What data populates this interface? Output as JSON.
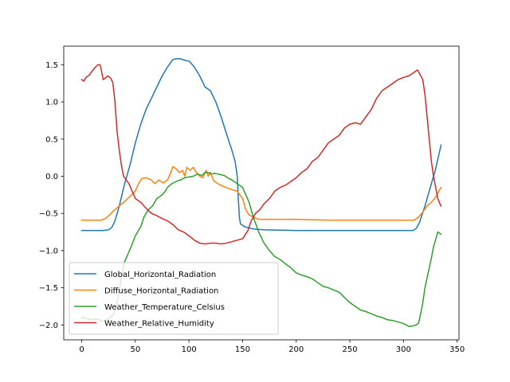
{
  "chart_data": {
    "type": "line",
    "title": "",
    "xlabel": "",
    "ylabel": "",
    "xlim": [
      -16.75,
      351.75
    ],
    "ylim": [
      -2.2,
      1.75
    ],
    "xticks": [
      0,
      50,
      100,
      150,
      200,
      250,
      300,
      350
    ],
    "yticks": [
      -2.0,
      -1.5,
      -1.0,
      -0.5,
      0.0,
      0.5,
      1.0,
      1.5
    ],
    "xtick_labels": [
      "0",
      "50",
      "100",
      "150",
      "200",
      "250",
      "300",
      "350"
    ],
    "ytick_labels": [
      "−2.0",
      "−1.5",
      "−1.0",
      "−0.5",
      "0.0",
      "0.5",
      "1.0",
      "1.5"
    ],
    "grid": false,
    "legend_position": "lower-left",
    "series": [
      {
        "name": "Global_Horizontal_Radiation",
        "color": "#1f77b4",
        "points": [
          [
            0,
            -0.73
          ],
          [
            10,
            -0.73
          ],
          [
            20,
            -0.73
          ],
          [
            25,
            -0.72
          ],
          [
            28,
            -0.69
          ],
          [
            31,
            -0.6
          ],
          [
            35,
            -0.4
          ],
          [
            40,
            -0.1
          ],
          [
            45,
            0.15
          ],
          [
            50,
            0.45
          ],
          [
            55,
            0.7
          ],
          [
            60,
            0.9
          ],
          [
            65,
            1.05
          ],
          [
            70,
            1.2
          ],
          [
            75,
            1.35
          ],
          [
            80,
            1.47
          ],
          [
            85,
            1.57
          ],
          [
            88,
            1.58
          ],
          [
            92,
            1.58
          ],
          [
            96,
            1.56
          ],
          [
            100,
            1.55
          ],
          [
            105,
            1.47
          ],
          [
            110,
            1.35
          ],
          [
            115,
            1.2
          ],
          [
            120,
            1.15
          ],
          [
            125,
            1.0
          ],
          [
            130,
            0.8
          ],
          [
            135,
            0.57
          ],
          [
            140,
            0.35
          ],
          [
            143,
            0.2
          ],
          [
            145,
            0.0
          ],
          [
            146,
            -0.3
          ],
          [
            147,
            -0.55
          ],
          [
            148,
            -0.64
          ],
          [
            152,
            -0.68
          ],
          [
            160,
            -0.71
          ],
          [
            170,
            -0.72
          ],
          [
            200,
            -0.73
          ],
          [
            250,
            -0.73
          ],
          [
            300,
            -0.73
          ],
          [
            309,
            -0.73
          ],
          [
            312,
            -0.7
          ],
          [
            315,
            -0.62
          ],
          [
            320,
            -0.4
          ],
          [
            325,
            -0.15
          ],
          [
            330,
            0.1
          ],
          [
            335,
            0.42
          ]
        ]
      },
      {
        "name": "Diffuse_Horizontal_Radiation",
        "color": "#ff7f0e",
        "points": [
          [
            0,
            -0.59
          ],
          [
            10,
            -0.59
          ],
          [
            18,
            -0.59
          ],
          [
            22,
            -0.57
          ],
          [
            26,
            -0.52
          ],
          [
            30,
            -0.46
          ],
          [
            35,
            -0.4
          ],
          [
            40,
            -0.34
          ],
          [
            45,
            -0.27
          ],
          [
            50,
            -0.2
          ],
          [
            53,
            -0.1
          ],
          [
            56,
            -0.03
          ],
          [
            60,
            -0.02
          ],
          [
            65,
            -0.05
          ],
          [
            68,
            -0.1
          ],
          [
            72,
            -0.05
          ],
          [
            76,
            -0.09
          ],
          [
            80,
            -0.05
          ],
          [
            83,
            0.05
          ],
          [
            85,
            0.13
          ],
          [
            88,
            0.1
          ],
          [
            91,
            0.05
          ],
          [
            94,
            0.08
          ],
          [
            96,
            0.0
          ],
          [
            98,
            0.12
          ],
          [
            101,
            0.08
          ],
          [
            104,
            0.12
          ],
          [
            107,
            0.05
          ],
          [
            110,
            0.0
          ],
          [
            113,
            -0.02
          ],
          [
            116,
            0.08
          ],
          [
            118,
            0.0
          ],
          [
            120,
            0.05
          ],
          [
            123,
            -0.06
          ],
          [
            127,
            -0.1
          ],
          [
            131,
            -0.13
          ],
          [
            136,
            -0.16
          ],
          [
            140,
            -0.18
          ],
          [
            145,
            -0.2
          ],
          [
            150,
            -0.3
          ],
          [
            153,
            -0.45
          ],
          [
            156,
            -0.52
          ],
          [
            160,
            -0.55
          ],
          [
            165,
            -0.58
          ],
          [
            175,
            -0.58
          ],
          [
            200,
            -0.58
          ],
          [
            230,
            -0.59
          ],
          [
            260,
            -0.59
          ],
          [
            290,
            -0.59
          ],
          [
            310,
            -0.59
          ],
          [
            314,
            -0.55
          ],
          [
            318,
            -0.48
          ],
          [
            322,
            -0.4
          ],
          [
            326,
            -0.35
          ],
          [
            330,
            -0.28
          ],
          [
            333,
            -0.2
          ],
          [
            335,
            -0.15
          ]
        ]
      },
      {
        "name": "Weather_Temperature_Celsius",
        "color": "#2ca02c",
        "points": [
          [
            0,
            -1.9
          ],
          [
            10,
            -1.93
          ],
          [
            15,
            -1.92
          ],
          [
            20,
            -1.95
          ],
          [
            25,
            -1.92
          ],
          [
            30,
            -1.85
          ],
          [
            33,
            -1.7
          ],
          [
            35,
            -1.55
          ],
          [
            37,
            -1.35
          ],
          [
            40,
            -1.15
          ],
          [
            43,
            -1.05
          ],
          [
            46,
            -0.95
          ],
          [
            50,
            -0.8
          ],
          [
            55,
            -0.68
          ],
          [
            58,
            -0.55
          ],
          [
            62,
            -0.45
          ],
          [
            66,
            -0.4
          ],
          [
            70,
            -0.3
          ],
          [
            75,
            -0.25
          ],
          [
            78,
            -0.2
          ],
          [
            80,
            -0.15
          ],
          [
            84,
            -0.1
          ],
          [
            88,
            -0.07
          ],
          [
            92,
            -0.05
          ],
          [
            96,
            -0.02
          ],
          [
            100,
            -0.01
          ],
          [
            104,
            0.0
          ],
          [
            108,
            0.03
          ],
          [
            112,
            0.01
          ],
          [
            115,
            0.05
          ],
          [
            118,
            0.05
          ],
          [
            121,
            0.03
          ],
          [
            124,
            0.04
          ],
          [
            127,
            0.03
          ],
          [
            130,
            0.02
          ],
          [
            133,
            0.01
          ],
          [
            136,
            -0.02
          ],
          [
            140,
            -0.05
          ],
          [
            145,
            -0.1
          ],
          [
            150,
            -0.15
          ],
          [
            153,
            -0.25
          ],
          [
            156,
            -0.35
          ],
          [
            160,
            -0.55
          ],
          [
            165,
            -0.75
          ],
          [
            170,
            -0.9
          ],
          [
            175,
            -1.0
          ],
          [
            180,
            -1.08
          ],
          [
            185,
            -1.12
          ],
          [
            190,
            -1.18
          ],
          [
            195,
            -1.23
          ],
          [
            200,
            -1.3
          ],
          [
            205,
            -1.33
          ],
          [
            210,
            -1.35
          ],
          [
            215,
            -1.38
          ],
          [
            220,
            -1.43
          ],
          [
            225,
            -1.48
          ],
          [
            230,
            -1.5
          ],
          [
            235,
            -1.53
          ],
          [
            240,
            -1.56
          ],
          [
            245,
            -1.63
          ],
          [
            250,
            -1.7
          ],
          [
            255,
            -1.75
          ],
          [
            260,
            -1.8
          ],
          [
            265,
            -1.82
          ],
          [
            270,
            -1.85
          ],
          [
            275,
            -1.88
          ],
          [
            280,
            -1.9
          ],
          [
            285,
            -1.93
          ],
          [
            290,
            -1.94
          ],
          [
            295,
            -1.96
          ],
          [
            300,
            -1.98
          ],
          [
            305,
            -2.02
          ],
          [
            310,
            -2.01
          ],
          [
            314,
            -1.98
          ],
          [
            316,
            -1.85
          ],
          [
            318,
            -1.7
          ],
          [
            320,
            -1.5
          ],
          [
            323,
            -1.3
          ],
          [
            326,
            -1.1
          ],
          [
            328,
            -0.95
          ],
          [
            330,
            -0.85
          ],
          [
            332,
            -0.75
          ],
          [
            335,
            -0.78
          ]
        ]
      },
      {
        "name": "Weather_Relative_Humidity",
        "color": "#d62728",
        "points": [
          [
            0,
            1.3
          ],
          [
            2,
            1.28
          ],
          [
            4,
            1.33
          ],
          [
            7,
            1.36
          ],
          [
            10,
            1.42
          ],
          [
            13,
            1.47
          ],
          [
            15,
            1.5
          ],
          [
            17,
            1.5
          ],
          [
            18,
            1.45
          ],
          [
            20,
            1.3
          ],
          [
            22,
            1.32
          ],
          [
            24,
            1.35
          ],
          [
            27,
            1.32
          ],
          [
            29,
            1.26
          ],
          [
            31,
            1.0
          ],
          [
            33,
            0.6
          ],
          [
            35,
            0.35
          ],
          [
            37,
            0.15
          ],
          [
            39,
            0.0
          ],
          [
            42,
            -0.06
          ],
          [
            44,
            -0.1
          ],
          [
            47,
            -0.2
          ],
          [
            50,
            -0.3
          ],
          [
            55,
            -0.35
          ],
          [
            60,
            -0.43
          ],
          [
            65,
            -0.5
          ],
          [
            70,
            -0.53
          ],
          [
            75,
            -0.57
          ],
          [
            80,
            -0.6
          ],
          [
            85,
            -0.65
          ],
          [
            90,
            -0.72
          ],
          [
            95,
            -0.75
          ],
          [
            100,
            -0.8
          ],
          [
            105,
            -0.86
          ],
          [
            110,
            -0.9
          ],
          [
            115,
            -0.91
          ],
          [
            120,
            -0.9
          ],
          [
            125,
            -0.9
          ],
          [
            130,
            -0.91
          ],
          [
            135,
            -0.9
          ],
          [
            140,
            -0.88
          ],
          [
            145,
            -0.86
          ],
          [
            150,
            -0.84
          ],
          [
            155,
            -0.73
          ],
          [
            158,
            -0.6
          ],
          [
            162,
            -0.5
          ],
          [
            166,
            -0.45
          ],
          [
            170,
            -0.37
          ],
          [
            175,
            -0.3
          ],
          [
            180,
            -0.2
          ],
          [
            185,
            -0.15
          ],
          [
            190,
            -0.12
          ],
          [
            195,
            -0.07
          ],
          [
            200,
            -0.02
          ],
          [
            205,
            0.05
          ],
          [
            210,
            0.1
          ],
          [
            215,
            0.2
          ],
          [
            220,
            0.25
          ],
          [
            225,
            0.35
          ],
          [
            230,
            0.45
          ],
          [
            235,
            0.5
          ],
          [
            240,
            0.55
          ],
          [
            245,
            0.65
          ],
          [
            250,
            0.7
          ],
          [
            255,
            0.72
          ],
          [
            260,
            0.7
          ],
          [
            265,
            0.8
          ],
          [
            270,
            0.9
          ],
          [
            275,
            1.05
          ],
          [
            280,
            1.15
          ],
          [
            285,
            1.2
          ],
          [
            290,
            1.25
          ],
          [
            295,
            1.3
          ],
          [
            300,
            1.33
          ],
          [
            305,
            1.35
          ],
          [
            310,
            1.4
          ],
          [
            313,
            1.43
          ],
          [
            315,
            1.38
          ],
          [
            318,
            1.3
          ],
          [
            320,
            1.1
          ],
          [
            322,
            0.8
          ],
          [
            324,
            0.5
          ],
          [
            326,
            0.2
          ],
          [
            328,
            0.0
          ],
          [
            330,
            -0.15
          ],
          [
            332,
            -0.3
          ],
          [
            334,
            -0.37
          ],
          [
            335,
            -0.4
          ]
        ]
      }
    ]
  }
}
